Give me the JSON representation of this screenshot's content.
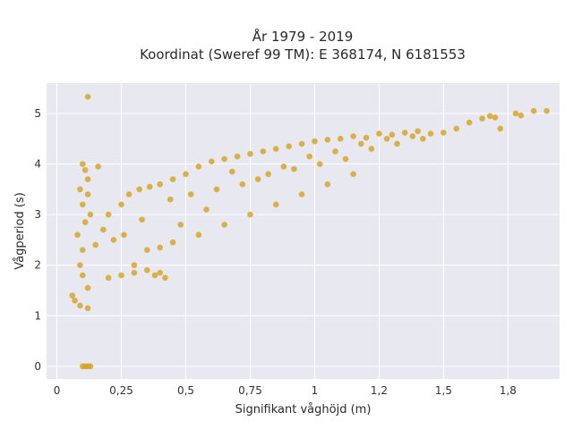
{
  "chart_data": {
    "type": "scatter",
    "title": "År 1979 - 2019",
    "subtitle": "Koordinat (Sweref 99 TM): E 368174, N 6181553",
    "xlabel": "Signifikant våghöjd (m)",
    "ylabel": "Vågperiod (s)",
    "xlim": [
      -0.04,
      1.95
    ],
    "ylim": [
      -0.25,
      5.6
    ],
    "xticks": [
      0,
      0.25,
      0.5,
      0.75,
      1,
      1.25,
      1.5,
      1.75
    ],
    "xtick_labels": [
      "0",
      "0,25",
      "0,5",
      "0,75",
      "1",
      "1,2",
      "1,5",
      "1,8"
    ],
    "yticks": [
      0,
      1,
      2,
      3,
      4,
      5
    ],
    "ytick_labels": [
      "0",
      "1",
      "2",
      "3",
      "4",
      "5"
    ],
    "grid": true,
    "legend": "none",
    "series": [
      {
        "color": "#d4a11d",
        "points": [
          [
            0.12,
            5.33
          ],
          [
            0.1,
            4.0
          ],
          [
            0.16,
            3.95
          ],
          [
            0.11,
            3.88
          ],
          [
            0.12,
            3.7
          ],
          [
            0.09,
            3.5
          ],
          [
            0.12,
            3.4
          ],
          [
            0.1,
            3.2
          ],
          [
            0.13,
            3.0
          ],
          [
            0.11,
            2.85
          ],
          [
            0.08,
            2.6
          ],
          [
            0.1,
            2.3
          ],
          [
            0.09,
            2.0
          ],
          [
            0.1,
            1.8
          ],
          [
            0.12,
            1.55
          ],
          [
            0.06,
            1.4
          ],
          [
            0.07,
            1.3
          ],
          [
            0.09,
            1.2
          ],
          [
            0.12,
            1.15
          ],
          [
            0.1,
            0.0
          ],
          [
            0.11,
            0.0
          ],
          [
            0.12,
            0.0
          ],
          [
            0.13,
            0.0
          ],
          [
            0.15,
            2.4
          ],
          [
            0.18,
            2.7
          ],
          [
            0.2,
            3.0
          ],
          [
            0.22,
            2.5
          ],
          [
            0.25,
            3.2
          ],
          [
            0.2,
            1.75
          ],
          [
            0.25,
            1.8
          ],
          [
            0.3,
            1.85
          ],
          [
            0.35,
            1.9
          ],
          [
            0.38,
            1.8
          ],
          [
            0.42,
            1.75
          ],
          [
            0.4,
            1.85
          ],
          [
            0.28,
            3.4
          ],
          [
            0.32,
            3.5
          ],
          [
            0.36,
            3.55
          ],
          [
            0.4,
            3.6
          ],
          [
            0.45,
            3.7
          ],
          [
            0.5,
            3.8
          ],
          [
            0.55,
            3.95
          ],
          [
            0.6,
            4.05
          ],
          [
            0.65,
            4.1
          ],
          [
            0.7,
            4.15
          ],
          [
            0.75,
            4.2
          ],
          [
            0.8,
            4.25
          ],
          [
            0.85,
            4.3
          ],
          [
            0.9,
            4.35
          ],
          [
            0.95,
            4.4
          ],
          [
            1.0,
            4.45
          ],
          [
            1.05,
            4.48
          ],
          [
            1.1,
            4.5
          ],
          [
            1.15,
            4.55
          ],
          [
            1.2,
            4.52
          ],
          [
            1.25,
            4.6
          ],
          [
            1.3,
            4.58
          ],
          [
            1.35,
            4.62
          ],
          [
            1.4,
            4.65
          ],
          [
            1.45,
            4.6
          ],
          [
            1.5,
            4.62
          ],
          [
            1.55,
            4.7
          ],
          [
            1.6,
            4.82
          ],
          [
            1.65,
            4.9
          ],
          [
            1.68,
            4.95
          ],
          [
            1.7,
            4.92
          ],
          [
            1.78,
            5.0
          ],
          [
            1.8,
            4.96
          ],
          [
            1.85,
            5.05
          ],
          [
            1.9,
            5.05
          ],
          [
            1.72,
            4.7
          ],
          [
            0.45,
            2.45
          ],
          [
            0.55,
            2.6
          ],
          [
            0.65,
            2.8
          ],
          [
            0.75,
            3.0
          ],
          [
            0.85,
            3.2
          ],
          [
            0.95,
            3.4
          ],
          [
            1.05,
            3.6
          ],
          [
            1.15,
            3.8
          ],
          [
            0.35,
            2.3
          ],
          [
            0.4,
            2.35
          ],
          [
            0.3,
            2.0
          ],
          [
            0.48,
            2.8
          ],
          [
            0.58,
            3.1
          ],
          [
            0.62,
            3.5
          ],
          [
            0.72,
            3.6
          ],
          [
            0.82,
            3.8
          ],
          [
            0.92,
            3.9
          ],
          [
            1.02,
            4.0
          ],
          [
            1.12,
            4.1
          ],
          [
            1.22,
            4.3
          ],
          [
            1.32,
            4.4
          ],
          [
            1.42,
            4.5
          ],
          [
            0.26,
            2.6
          ],
          [
            0.33,
            2.9
          ],
          [
            0.44,
            3.3
          ],
          [
            0.52,
            3.4
          ],
          [
            0.68,
            3.85
          ],
          [
            0.78,
            3.7
          ],
          [
            0.88,
            3.95
          ],
          [
            0.98,
            4.15
          ],
          [
            1.08,
            4.25
          ],
          [
            1.18,
            4.4
          ],
          [
            1.28,
            4.5
          ],
          [
            1.38,
            4.55
          ]
        ]
      }
    ]
  }
}
